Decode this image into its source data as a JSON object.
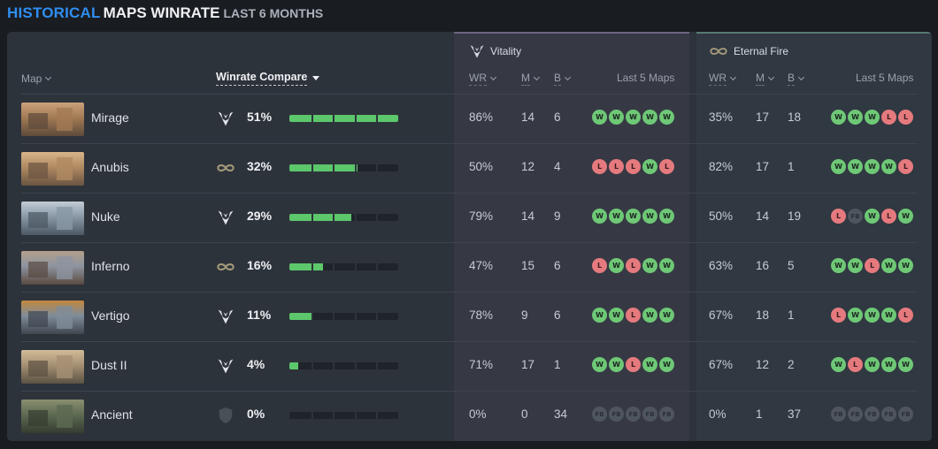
{
  "header": {
    "part1": "HISTORICAL",
    "part2": "MAPS WINRATE",
    "part3": "LAST 6 MONTHS"
  },
  "columns": {
    "map": "Map",
    "winrate_compare": "Winrate Compare",
    "wr": "WR",
    "m": "M",
    "b": "B",
    "last5": "Last 5 Maps"
  },
  "teams": [
    {
      "name": "Vitality",
      "icon": "vitality-logo-icon",
      "accent": "#6d6582"
    },
    {
      "name": "Eternal Fire",
      "icon": "eternal-fire-logo-icon",
      "accent": "#587a72"
    }
  ],
  "colors": {
    "win": "#6ec876",
    "loss": "#e57a7e",
    "bar": "#5cc76b",
    "accent_blue": "#2f8ef2"
  },
  "rows": [
    {
      "map": "Mirage",
      "leader": "vitality",
      "pct": "51%",
      "fill": 1.0,
      "t1": {
        "wr": "86%",
        "m": "14",
        "b": "6",
        "last5": [
          "W",
          "W",
          "W",
          "W",
          "W"
        ]
      },
      "t2": {
        "wr": "35%",
        "m": "17",
        "b": "18",
        "last5": [
          "W",
          "W",
          "W",
          "L",
          "L"
        ]
      }
    },
    {
      "map": "Anubis",
      "leader": "eternal-fire",
      "pct": "32%",
      "fill": 0.63,
      "t1": {
        "wr": "50%",
        "m": "12",
        "b": "4",
        "last5": [
          "L",
          "L",
          "L",
          "W",
          "L"
        ]
      },
      "t2": {
        "wr": "82%",
        "m": "17",
        "b": "1",
        "last5": [
          "W",
          "W",
          "W",
          "W",
          "L"
        ]
      }
    },
    {
      "map": "Nuke",
      "leader": "vitality",
      "pct": "29%",
      "fill": 0.57,
      "t1": {
        "wr": "79%",
        "m": "14",
        "b": "9",
        "last5": [
          "W",
          "W",
          "W",
          "W",
          "W"
        ]
      },
      "t2": {
        "wr": "50%",
        "m": "14",
        "b": "19",
        "last5": [
          "L",
          "FB",
          "W",
          "L",
          "W"
        ]
      }
    },
    {
      "map": "Inferno",
      "leader": "eternal-fire",
      "pct": "16%",
      "fill": 0.31,
      "t1": {
        "wr": "47%",
        "m": "15",
        "b": "6",
        "last5": [
          "L",
          "W",
          "L",
          "W",
          "W"
        ]
      },
      "t2": {
        "wr": "63%",
        "m": "16",
        "b": "5",
        "last5": [
          "W",
          "W",
          "L",
          "W",
          "W"
        ]
      }
    },
    {
      "map": "Vertigo",
      "leader": "vitality",
      "pct": "11%",
      "fill": 0.22,
      "t1": {
        "wr": "78%",
        "m": "9",
        "b": "6",
        "last5": [
          "W",
          "W",
          "L",
          "W",
          "W"
        ]
      },
      "t2": {
        "wr": "67%",
        "m": "18",
        "b": "1",
        "last5": [
          "L",
          "W",
          "W",
          "W",
          "L"
        ]
      }
    },
    {
      "map": "Dust II",
      "leader": "vitality",
      "pct": "4%",
      "fill": 0.08,
      "t1": {
        "wr": "71%",
        "m": "17",
        "b": "1",
        "last5": [
          "W",
          "W",
          "L",
          "W",
          "W"
        ]
      },
      "t2": {
        "wr": "67%",
        "m": "12",
        "b": "2",
        "last5": [
          "W",
          "L",
          "W",
          "W",
          "W"
        ]
      }
    },
    {
      "map": "Ancient",
      "leader": "none",
      "pct": "0%",
      "fill": 0.0,
      "t1": {
        "wr": "0%",
        "m": "0",
        "b": "34",
        "last5": [
          "FB",
          "FB",
          "FB",
          "FB",
          "FB"
        ]
      },
      "t2": {
        "wr": "0%",
        "m": "1",
        "b": "37",
        "last5": [
          "FB",
          "FB",
          "FB",
          "FB",
          "FB"
        ]
      }
    }
  ]
}
